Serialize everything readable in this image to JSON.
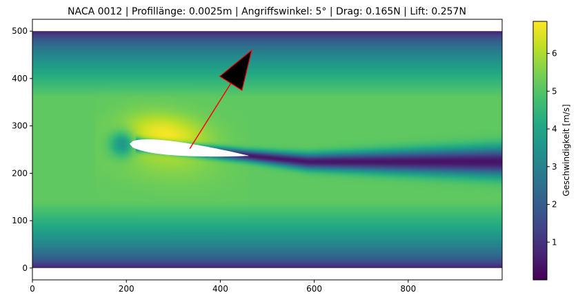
{
  "chart_data": {
    "type": "heatmap",
    "title": "NACA 0012 | Profillänge: 0.0025m | Angriffswinkel: 5° | Drag:  0.165N | Lift:  0.257N",
    "xlabel": "",
    "ylabel": "",
    "xlim": [
      0,
      1000
    ],
    "ylim": [
      -25,
      525
    ],
    "x_ticks": [
      0,
      200,
      400,
      600,
      800
    ],
    "y_ticks": [
      0,
      100,
      200,
      300,
      400,
      500
    ],
    "field_extent": {
      "x": [
        0,
        1000
      ],
      "y": [
        0,
        500
      ]
    },
    "colorbar": {
      "label": "Geschwindigkeit [m/s]",
      "range": [
        0,
        6.85
      ],
      "ticks": [
        1,
        2,
        3,
        4,
        5,
        6
      ],
      "colormap": "viridis"
    },
    "airfoil": {
      "name": "NACA 0012",
      "leading_edge": [
        207,
        262
      ],
      "trailing_edge": [
        460,
        237
      ],
      "fill": "#ffffff"
    },
    "lift_arrow": {
      "tail": [
        335,
        252
      ],
      "tip": [
        467,
        460
      ],
      "color": "#ff0000",
      "head_fill": "#000000"
    },
    "grid": false
  }
}
